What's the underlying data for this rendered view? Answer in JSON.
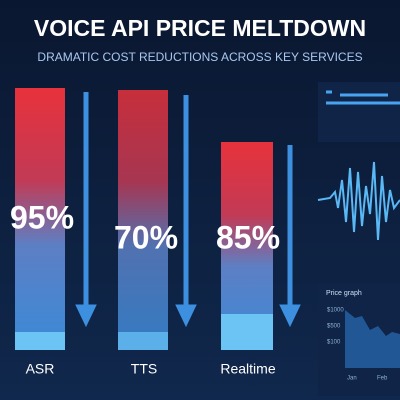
{
  "header": {
    "title": "VOICE API PRICE MELTDOWN",
    "subtitle": "DRAMATIC COST REDUCTIONS ACROSS KEY SERVICES"
  },
  "services": [
    {
      "label": "ASR",
      "reduction": "95%"
    },
    {
      "label": "TTS",
      "reduction": "70%"
    },
    {
      "label": "Realtime",
      "reduction": "85%"
    }
  ],
  "panel": {
    "title": "Price graph",
    "yticks": [
      "$1000",
      "$500",
      "$100"
    ],
    "xticks": [
      "Jan",
      "Feb"
    ]
  }
}
